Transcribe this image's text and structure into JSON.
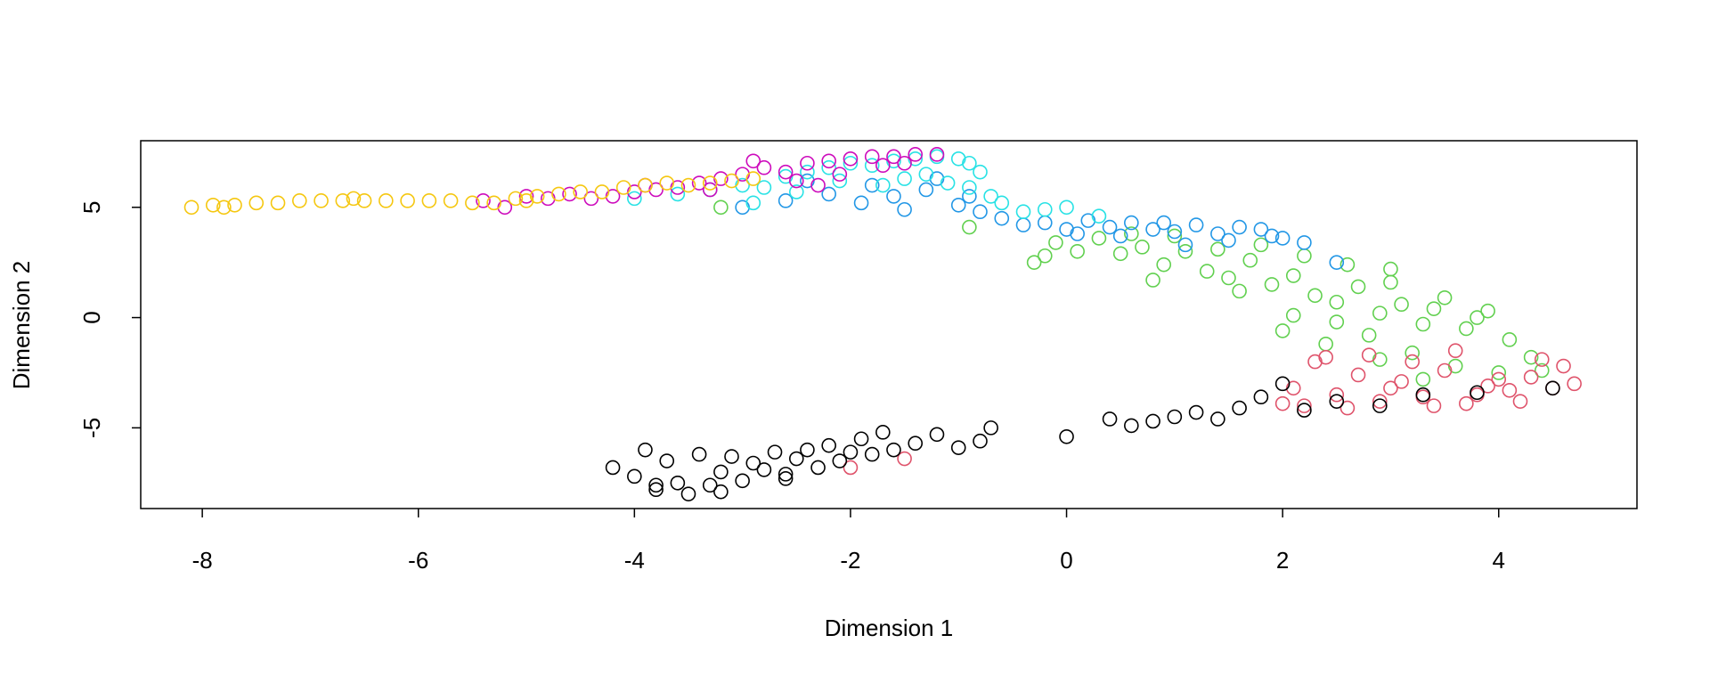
{
  "chart_data": {
    "type": "scatter",
    "xlabel": "Dimension 1",
    "ylabel": "Dimension 2",
    "xlim": [
      -8.57,
      5.28
    ],
    "ylim": [
      -8.66,
      8.02
    ],
    "xticks": [
      -8,
      -6,
      -4,
      -2,
      0,
      2,
      4
    ],
    "yticks": [
      -5,
      0,
      5
    ],
    "grid": false,
    "series": [
      {
        "color": "#61D04F",
        "x": [
          -3.2,
          -0.9,
          -0.3,
          -0.1,
          0.1,
          0.3,
          0.5,
          0.7,
          0.9,
          1.1,
          1.3,
          1.5,
          1.7,
          1.9,
          2.1,
          2.3,
          2.5,
          2.7,
          2.9,
          3.1,
          3.3,
          3.5,
          3.7,
          3.9,
          4.1,
          4.3,
          0.6,
          1.0,
          1.4,
          1.8,
          2.2,
          2.6,
          3.0,
          3.4,
          3.8,
          2.0,
          2.4,
          2.8,
          3.2,
          3.6,
          4.0,
          4.4,
          1.6,
          2.1,
          2.5,
          2.9,
          3.3,
          -0.2,
          0.8,
          3.0
        ],
        "values": [
          5.0,
          4.1,
          2.5,
          3.4,
          3.0,
          3.6,
          2.9,
          3.2,
          2.4,
          3.0,
          2.1,
          1.8,
          2.6,
          1.5,
          1.9,
          1.0,
          0.7,
          1.4,
          0.2,
          0.6,
          -0.3,
          0.9,
          -0.5,
          0.3,
          -1.0,
          -1.8,
          3.8,
          3.7,
          3.1,
          3.3,
          2.8,
          2.4,
          1.6,
          0.4,
          0.0,
          -0.6,
          -1.2,
          -0.8,
          -1.6,
          -2.2,
          -2.5,
          -2.4,
          1.2,
          0.1,
          -0.2,
          -1.9,
          -2.8,
          2.8,
          1.7,
          2.2
        ]
      },
      {
        "color": "#2297E6",
        "x": [
          -3.0,
          -2.6,
          -2.2,
          -1.9,
          -1.6,
          -1.3,
          -1.0,
          -0.8,
          -0.6,
          -0.4,
          -0.2,
          0.0,
          0.2,
          0.4,
          0.6,
          0.8,
          1.0,
          1.2,
          1.4,
          1.6,
          1.8,
          2.0,
          2.2,
          2.5,
          -1.8,
          -1.2,
          -0.9,
          0.1,
          0.5,
          1.1,
          1.5,
          -2.4,
          -1.5,
          0.9,
          1.9
        ],
        "values": [
          5.0,
          5.3,
          5.6,
          5.2,
          5.5,
          5.8,
          5.1,
          4.8,
          4.5,
          4.2,
          4.3,
          4.0,
          4.4,
          4.1,
          4.3,
          4.0,
          3.9,
          4.2,
          3.8,
          4.1,
          4.0,
          3.6,
          3.4,
          2.5,
          6.0,
          6.3,
          5.5,
          3.8,
          3.7,
          3.3,
          3.5,
          6.2,
          4.9,
          4.3,
          3.7
        ]
      },
      {
        "color": "#28E2E5",
        "x": [
          -4.0,
          -3.6,
          -3.3,
          -3.0,
          -2.8,
          -2.6,
          -2.4,
          -2.2,
          -2.0,
          -1.8,
          -1.6,
          -1.4,
          -1.2,
          -1.0,
          -0.9,
          -0.8,
          -1.1,
          -1.3,
          -1.5,
          -2.1,
          -2.5,
          -0.6,
          -0.4,
          -0.2,
          0.0,
          0.3,
          -0.7,
          -0.9,
          -1.7,
          -2.9
        ],
        "values": [
          5.4,
          5.6,
          5.8,
          6.0,
          5.9,
          6.4,
          6.6,
          6.8,
          7.0,
          6.9,
          7.1,
          7.2,
          7.3,
          7.2,
          7.0,
          6.6,
          6.1,
          6.5,
          6.3,
          6.2,
          5.7,
          5.2,
          4.8,
          4.9,
          5.0,
          4.6,
          5.5,
          5.9,
          6.0,
          5.2
        ]
      },
      {
        "color": "#CD0BBC",
        "x": [
          -5.4,
          -5.2,
          -5.0,
          -4.8,
          -4.6,
          -4.4,
          -4.2,
          -4.0,
          -3.8,
          -3.6,
          -3.4,
          -3.2,
          -3.0,
          -2.8,
          -2.6,
          -2.4,
          -2.2,
          -2.0,
          -1.8,
          -1.6,
          -1.4,
          -1.2,
          -2.9,
          -2.5,
          -2.1,
          -1.7,
          -3.3,
          -3.9,
          -2.3,
          -1.5
        ],
        "values": [
          5.3,
          5.0,
          5.5,
          5.4,
          5.6,
          5.4,
          5.5,
          5.7,
          5.8,
          5.9,
          6.1,
          6.3,
          6.5,
          6.8,
          6.6,
          7.0,
          7.1,
          7.2,
          7.3,
          7.3,
          7.4,
          7.4,
          7.1,
          6.2,
          6.5,
          6.9,
          5.8,
          6.0,
          6.0,
          7.0
        ]
      },
      {
        "color": "#F5C710",
        "x": [
          -8.1,
          -7.9,
          -7.7,
          -7.5,
          -7.3,
          -7.1,
          -6.9,
          -6.7,
          -6.5,
          -6.3,
          -6.1,
          -5.9,
          -5.7,
          -5.5,
          -5.3,
          -5.1,
          -4.9,
          -4.7,
          -4.5,
          -4.3,
          -4.1,
          -3.9,
          -3.7,
          -3.5,
          -3.3,
          -3.1,
          -2.9,
          -7.8,
          -6.6,
          -5.0
        ],
        "values": [
          5.0,
          5.1,
          5.1,
          5.2,
          5.2,
          5.3,
          5.3,
          5.3,
          5.3,
          5.3,
          5.3,
          5.3,
          5.3,
          5.2,
          5.2,
          5.4,
          5.5,
          5.6,
          5.7,
          5.7,
          5.9,
          6.0,
          6.1,
          6.0,
          6.1,
          6.2,
          6.3,
          5.0,
          5.4,
          5.3
        ]
      },
      {
        "color": "#DF536B",
        "x": [
          2.1,
          2.3,
          2.5,
          2.7,
          2.9,
          3.1,
          3.3,
          3.5,
          3.7,
          3.9,
          4.1,
          4.3,
          4.5,
          4.7,
          2.2,
          2.6,
          3.0,
          3.4,
          3.8,
          4.2,
          4.6,
          2.4,
          2.8,
          3.2,
          3.6,
          4.0,
          4.4,
          2.0,
          -2.0,
          -1.5
        ],
        "values": [
          -3.2,
          -2.0,
          -3.5,
          -2.6,
          -3.8,
          -2.9,
          -3.6,
          -2.4,
          -3.9,
          -3.1,
          -3.3,
          -2.7,
          -3.2,
          -3.0,
          -4.0,
          -4.1,
          -3.2,
          -4.0,
          -3.5,
          -3.8,
          -2.2,
          -1.8,
          -1.7,
          -2.0,
          -1.5,
          -2.8,
          -1.9,
          -3.9,
          -6.8,
          -6.4
        ]
      },
      {
        "color": "#000000",
        "x": [
          -4.2,
          -4.0,
          -3.9,
          -3.8,
          -3.7,
          -3.6,
          -3.5,
          -3.4,
          -3.3,
          -3.2,
          -3.1,
          -3.0,
          -2.9,
          -2.8,
          -2.7,
          -2.6,
          -2.5,
          -2.4,
          -2.3,
          -2.2,
          -2.1,
          -2.0,
          -1.9,
          -1.8,
          -1.7,
          -1.6,
          -1.4,
          -1.2,
          -1.0,
          -0.8,
          -0.7,
          0.0,
          0.4,
          0.6,
          0.8,
          1.0,
          1.2,
          1.4,
          1.6,
          1.8,
          2.0,
          2.2,
          2.5,
          2.9,
          3.3,
          3.8,
          4.5,
          -3.8,
          -3.2,
          -2.6
        ],
        "values": [
          -6.8,
          -7.2,
          -6.0,
          -7.8,
          -6.5,
          -7.5,
          -8.0,
          -6.2,
          -7.6,
          -7.0,
          -6.3,
          -7.4,
          -6.6,
          -6.9,
          -6.1,
          -7.1,
          -6.4,
          -6.0,
          -6.8,
          -5.8,
          -6.5,
          -6.1,
          -5.5,
          -6.2,
          -5.2,
          -6.0,
          -5.7,
          -5.3,
          -5.9,
          -5.6,
          -5.0,
          -5.4,
          -4.6,
          -4.9,
          -4.7,
          -4.5,
          -4.3,
          -4.6,
          -4.1,
          -3.6,
          -3.0,
          -4.2,
          -3.8,
          -4.0,
          -3.5,
          -3.4,
          -3.2,
          -7.6,
          -7.9,
          -7.3
        ]
      }
    ]
  }
}
